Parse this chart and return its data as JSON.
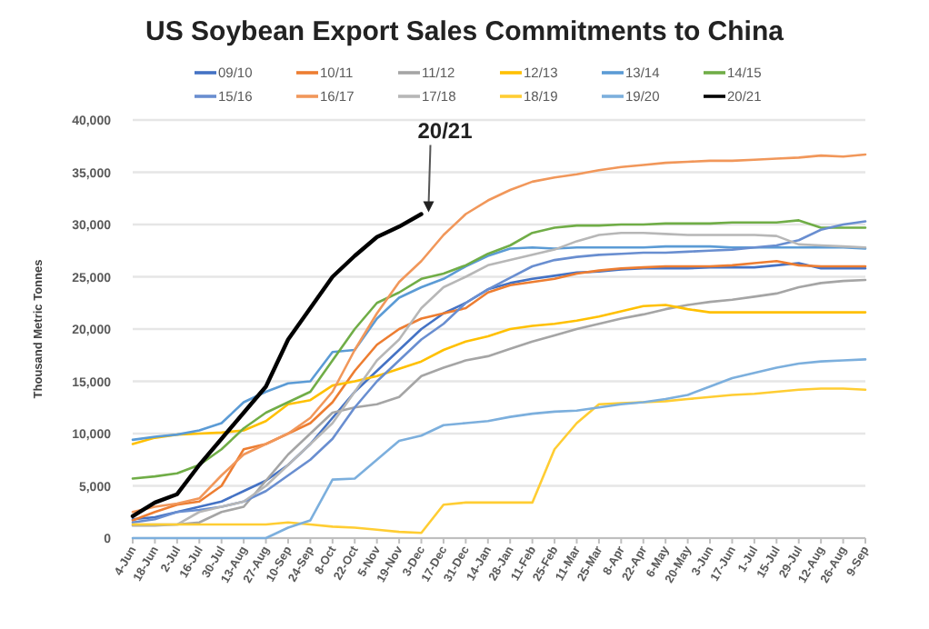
{
  "chart_data": {
    "type": "line",
    "title": "US Soybean Export Sales Commitments to China",
    "ylabel": "Thousand Metric Tonnes",
    "categories": [
      "4-Jun",
      "18-Jun",
      "2-Jul",
      "16-Jul",
      "30-Jul",
      "13-Aug",
      "27-Aug",
      "10-Sep",
      "24-Sep",
      "8-Oct",
      "22-Oct",
      "5-Nov",
      "19-Nov",
      "3-Dec",
      "17-Dec",
      "31-Dec",
      "14-Jan",
      "28-Jan",
      "11-Feb",
      "25-Feb",
      "11-Mar",
      "25-Mar",
      "8-Apr",
      "22-Apr",
      "6-May",
      "20-May",
      "3-Jun",
      "17-Jun",
      "1-Jul",
      "15-Jul",
      "29-Jul",
      "12-Aug",
      "26-Aug",
      "9-Sep"
    ],
    "ylim": [
      0,
      40000
    ],
    "yticks": [
      {
        "value": 0,
        "label": "0"
      },
      {
        "value": 5000,
        "label": "5,000"
      },
      {
        "value": 10000,
        "label": "10,000"
      },
      {
        "value": 15000,
        "label": "15,000"
      },
      {
        "value": 20000,
        "label": "20,000"
      },
      {
        "value": 25000,
        "label": "25,000"
      },
      {
        "value": 30000,
        "label": "30,000"
      },
      {
        "value": 35000,
        "label": "35,000"
      },
      {
        "value": 40000,
        "label": "40,000"
      }
    ],
    "grid": "y",
    "legend": "top",
    "marker": "none",
    "line_style": "solid",
    "series": [
      {
        "name": "09/10",
        "color": "#4472c4",
        "values": [
          1800,
          2000,
          2500,
          3000,
          3500,
          4500,
          5500,
          7000,
          9000,
          11500,
          14000,
          16000,
          18000,
          20000,
          21500,
          22500,
          23800,
          24400,
          24800,
          25100,
          25400,
          25500,
          25700,
          25800,
          25800,
          25800,
          25900,
          25900,
          25900,
          26100,
          26300,
          25800,
          25800,
          25800
        ]
      },
      {
        "name": "10/11",
        "color": "#ed7d31",
        "values": [
          1700,
          2500,
          3200,
          3500,
          5000,
          8500,
          9000,
          10000,
          11000,
          13000,
          16000,
          18500,
          20000,
          21000,
          21500,
          22000,
          23500,
          24200,
          24500,
          24800,
          25300,
          25600,
          25800,
          25900,
          26000,
          26000,
          26000,
          26100,
          26300,
          26500,
          26100,
          26000,
          26000,
          26000
        ]
      },
      {
        "name": "11/12",
        "color": "#a5a5a5",
        "values": [
          1200,
          1200,
          1300,
          1500,
          2500,
          3000,
          5500,
          8000,
          10000,
          12000,
          12500,
          12800,
          13500,
          15500,
          16300,
          17000,
          17400,
          18100,
          18800,
          19400,
          20000,
          20500,
          21000,
          21400,
          21900,
          22300,
          22600,
          22800,
          23100,
          23400,
          24000,
          24400,
          24600,
          24700
        ]
      },
      {
        "name": "12/13",
        "color": "#ffc000",
        "values": [
          9000,
          9600,
          9900,
          10000,
          10100,
          10300,
          11200,
          12800,
          13200,
          14600,
          15000,
          15500,
          16200,
          16900,
          18000,
          18800,
          19300,
          20000,
          20300,
          20500,
          20800,
          21200,
          21700,
          22200,
          22300,
          21900,
          21600,
          21600,
          21600,
          21600,
          21600,
          21600,
          21600,
          21600
        ]
      },
      {
        "name": "13/14",
        "color": "#5b9bd5",
        "values": [
          9400,
          9700,
          9900,
          10300,
          11000,
          13000,
          14000,
          14800,
          15000,
          17800,
          18000,
          21000,
          23000,
          24000,
          24800,
          26000,
          27000,
          27700,
          27800,
          27700,
          27800,
          27800,
          27800,
          27800,
          27900,
          27900,
          27900,
          27800,
          27800,
          27800,
          27800,
          27800,
          27800,
          27700
        ]
      },
      {
        "name": "14/15",
        "color": "#70ad47",
        "values": [
          5700,
          5900,
          6200,
          7000,
          8500,
          10500,
          12000,
          13000,
          14000,
          17000,
          20000,
          22500,
          23500,
          24800,
          25300,
          26100,
          27200,
          28000,
          29200,
          29700,
          29900,
          29900,
          30000,
          30000,
          30100,
          30100,
          30100,
          30200,
          30200,
          30200,
          30400,
          29700,
          29700,
          29700
        ]
      },
      {
        "name": "15/16",
        "color": "#698ed0",
        "values": [
          1500,
          1800,
          2500,
          2700,
          3000,
          3500,
          4500,
          6000,
          7500,
          9500,
          12500,
          15000,
          17000,
          19000,
          20500,
          22500,
          23800,
          24900,
          26000,
          26600,
          26900,
          27100,
          27200,
          27300,
          27300,
          27400,
          27500,
          27600,
          27800,
          28000,
          28500,
          29500,
          30000,
          30300
        ]
      },
      {
        "name": "16/17",
        "color": "#f1975a",
        "values": [
          2500,
          3000,
          3300,
          3800,
          6000,
          8000,
          9000,
          10000,
          11500,
          14000,
          18000,
          21500,
          24500,
          26500,
          29000,
          31000,
          32300,
          33300,
          34100,
          34500,
          34800,
          35200,
          35500,
          35700,
          35900,
          36000,
          36100,
          36100,
          36200,
          36300,
          36400,
          36600,
          36500,
          36700
        ]
      },
      {
        "name": "17/18",
        "color": "#b7b7b7",
        "values": [
          1300,
          1300,
          1300,
          2500,
          3000,
          3500,
          5000,
          7000,
          9000,
          11000,
          14000,
          17000,
          19000,
          22000,
          24000,
          25000,
          26100,
          26600,
          27100,
          27600,
          28400,
          29000,
          29200,
          29200,
          29100,
          29000,
          29000,
          29000,
          29000,
          28900,
          28100,
          28000,
          27900,
          27800
        ]
      },
      {
        "name": "18/19",
        "color": "#ffcd33",
        "values": [
          1300,
          1300,
          1300,
          1300,
          1300,
          1300,
          1300,
          1500,
          1300,
          1100,
          1000,
          800,
          600,
          500,
          3200,
          3400,
          3400,
          3400,
          3400,
          8500,
          11000,
          12800,
          12900,
          13000,
          13100,
          13300,
          13500,
          13700,
          13800,
          14000,
          14200,
          14300,
          14300,
          14200
        ]
      },
      {
        "name": "19/20",
        "color": "#7cafdd",
        "values": [
          0,
          0,
          0,
          0,
          0,
          0,
          0,
          1000,
          1700,
          5600,
          5700,
          7500,
          9300,
          9800,
          10800,
          11000,
          11200,
          11600,
          11900,
          12100,
          12200,
          12500,
          12800,
          13000,
          13300,
          13700,
          14500,
          15300,
          15800,
          16300,
          16700,
          16900,
          17000,
          17100
        ]
      },
      {
        "name": "20/21",
        "color": "#000000",
        "values": [
          2100,
          3400,
          4200,
          7000,
          9500,
          12000,
          14500,
          19000,
          22000,
          25000,
          27000,
          28800,
          29800,
          31000,
          null,
          null,
          null,
          null,
          null,
          null,
          null,
          null,
          null,
          null,
          null,
          null,
          null,
          null,
          null,
          null,
          null,
          null,
          null,
          null
        ]
      }
    ],
    "annotations": [
      {
        "text": "20/21",
        "x": "3-Dec",
        "y": 31000
      }
    ]
  }
}
